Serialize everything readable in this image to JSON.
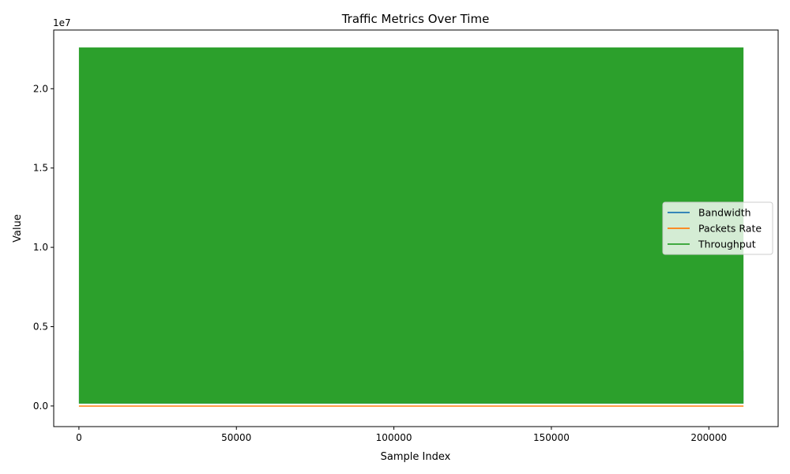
{
  "chart_data": {
    "type": "line",
    "title": "Traffic Metrics Over Time",
    "xlabel": "Sample Index",
    "ylabel": "Value",
    "y_offset_text": "1e7",
    "xlim": [
      -8000,
      222000
    ],
    "ylim": [
      -1300000,
      23700000
    ],
    "x_ticks": [
      {
        "value": 0,
        "label": "0"
      },
      {
        "value": 50000,
        "label": "50000"
      },
      {
        "value": 100000,
        "label": "100000"
      },
      {
        "value": 150000,
        "label": "150000"
      },
      {
        "value": 200000,
        "label": "200000"
      }
    ],
    "y_ticks": [
      {
        "value": 0,
        "label": "0.0"
      },
      {
        "value": 5000000,
        "label": "0.5"
      },
      {
        "value": 10000000,
        "label": "1.0"
      },
      {
        "value": 15000000,
        "label": "1.5"
      },
      {
        "value": 20000000,
        "label": "2.0"
      }
    ],
    "legend_position": "center-right",
    "series": [
      {
        "name": "Bandwidth",
        "color": "#1f77b4",
        "x": [
          0,
          211000
        ],
        "y_min": 150000,
        "y_max": 3500000
      },
      {
        "name": "Packets Rate",
        "color": "#ff7f0e",
        "x": [
          0,
          211000
        ],
        "y_min": 0,
        "y_max": 30000
      },
      {
        "name": "Throughput",
        "color": "#2ca02c",
        "x": [
          0,
          211000
        ],
        "y_min": 150000,
        "y_max": 22600000
      }
    ]
  }
}
